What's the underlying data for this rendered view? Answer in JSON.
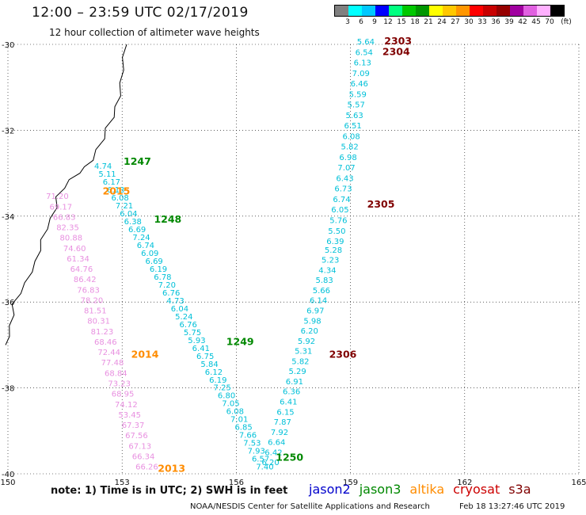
{
  "header": {
    "title": "12:00 – 23:59 UTC 02/17/2019",
    "subtitle": "12 hour collection of altimeter wave heights"
  },
  "legend": {
    "unit": "(ft)",
    "bins": [
      {
        "label": "3",
        "color": "#808080"
      },
      {
        "label": "6",
        "color": "#00ffff"
      },
      {
        "label": "9",
        "color": "#00c8ff"
      },
      {
        "label": "12",
        "color": "#0000ff"
      },
      {
        "label": "15",
        "color": "#00ff80"
      },
      {
        "label": "18",
        "color": "#00c800"
      },
      {
        "label": "21",
        "color": "#009600"
      },
      {
        "label": "24",
        "color": "#ffff00"
      },
      {
        "label": "27",
        "color": "#ffc800"
      },
      {
        "label": "30",
        "color": "#ff9600"
      },
      {
        "label": "33",
        "color": "#ff0000"
      },
      {
        "label": "36",
        "color": "#c80000"
      },
      {
        "label": "39",
        "color": "#960000"
      },
      {
        "label": "42",
        "color": "#a000a0"
      },
      {
        "label": "45",
        "color": "#e060e0"
      },
      {
        "label": "70",
        "color": "#ffb0ff"
      },
      {
        "label": "",
        "color": "#000000"
      }
    ]
  },
  "map": {
    "lon_ticks": [
      "150",
      "153",
      "156",
      "159",
      "162",
      "165"
    ],
    "lat_ticks": [
      "-30",
      "-32",
      "-34",
      "-36",
      "-38",
      "-40"
    ],
    "colors": {
      "jason2": "#0000cc",
      "jason3": "#008800",
      "altika": "#ff8c00",
      "cryosat": "#cc0000",
      "s3a": "#800000",
      "wave_cyan": "#00c0d8",
      "wave_pink": "#e890e0",
      "coast": "#000000",
      "grid": "#000000"
    },
    "pass_labels": [
      {
        "text": "1247",
        "sat": "jason3"
      },
      {
        "text": "1248",
        "sat": "jason3"
      },
      {
        "text": "1249",
        "sat": "jason3"
      },
      {
        "text": "1250",
        "sat": "jason3"
      },
      {
        "text": "2015",
        "sat": "altika"
      },
      {
        "text": "2014",
        "sat": "altika"
      },
      {
        "text": "2013",
        "sat": "altika"
      },
      {
        "text": "2303",
        "sat": "s3a"
      },
      {
        "text": "2304",
        "sat": "s3a"
      },
      {
        "text": "2305",
        "sat": "s3a"
      },
      {
        "text": "2306",
        "sat": "s3a"
      }
    ],
    "tracks": {
      "jason3": [
        "4.74",
        "5.11",
        "6.17",
        "6.13",
        "6.08",
        "7.21",
        "6.04",
        "6.38",
        "6.69",
        "7.24",
        "6.74",
        "6.09",
        "6.69",
        "6.19",
        "6.78",
        "7.20",
        "6.76",
        "4.73",
        "6.04",
        "5.24",
        "6.76",
        "5.75",
        "5.93",
        "6.41",
        "6.75",
        "5.84",
        "6.12",
        "6.19",
        "7.25",
        "6.80",
        "7.05",
        "6.08",
        "7.01",
        "6.85",
        "7.66",
        "7.53",
        "7.93",
        "6.57",
        "7.40"
      ],
      "altika": [
        "71.20",
        "69.17",
        "66.83",
        "82.35",
        "80.88",
        "74.60",
        "61.34",
        "64.76",
        "86.42",
        "76.83",
        "78.20",
        "81.51",
        "80.31",
        "81.23",
        "68.46",
        "72.44",
        "77.48",
        "68.84",
        "73.23",
        "68.95",
        "74.12",
        "53.45",
        "67.37",
        "67.56",
        "67.13",
        "66.34",
        "66.26"
      ],
      "s3a_descending": [
        "5.64",
        "6.54",
        "6.13",
        "7.09",
        "6.46",
        "5.59",
        "5.57",
        "5.63",
        "6.51",
        "6.08",
        "5.82",
        "6.98",
        "7.07",
        "6.43",
        "6.73",
        "6.74",
        "6.05",
        "5.76",
        "5.50",
        "6.39",
        "5.28",
        "5.23",
        "4.34",
        "5.83",
        "5.66",
        "6.14",
        "6.97",
        "5.98",
        "6.20",
        "5.92",
        "5.31",
        "5.82",
        "5.29",
        "6.91",
        "6.36",
        "6.41",
        "6.15",
        "7.87",
        "7.92",
        "6.64",
        "6.42",
        "6.20"
      ]
    }
  },
  "note": "note:  1) Time is in UTC;  2) SWH is in feet",
  "satellites": [
    {
      "name": "jason2",
      "color": "#0000cc"
    },
    {
      "name": "jason3",
      "color": "#008800"
    },
    {
      "name": "altika",
      "color": "#ff8c00"
    },
    {
      "name": "cryosat",
      "color": "#cc0000"
    },
    {
      "name": "s3a",
      "color": "#800000"
    }
  ],
  "footer": {
    "credit": "NOAA/NESDIS Center for Satellite Applications and Research",
    "timestamp": "Feb 18 13:27:46 UTC 2019"
  }
}
